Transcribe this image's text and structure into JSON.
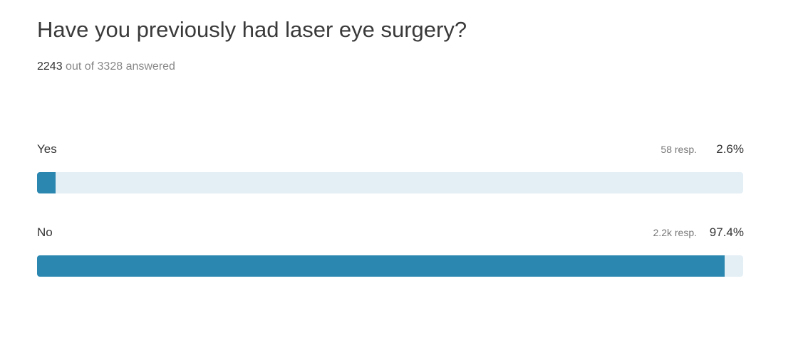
{
  "question": {
    "title": "Have you previously had laser eye surgery?",
    "answered": "2243",
    "answered_text": "out of 3328 answered",
    "options": [
      {
        "label": "Yes",
        "responses": "58 resp.",
        "percent": 2.6,
        "percent_label": "2.6%"
      },
      {
        "label": "No",
        "responses": "2.2k resp.",
        "percent": 97.4,
        "percent_label": "97.4%"
      }
    ]
  }
}
